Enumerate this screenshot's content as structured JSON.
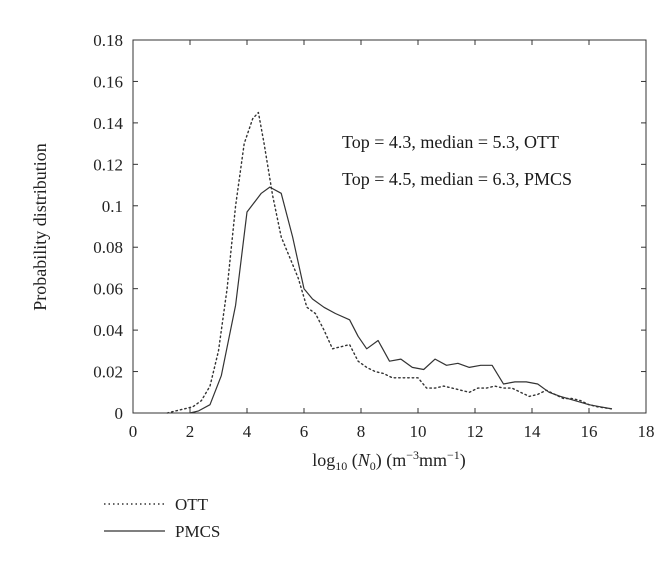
{
  "chart_data": {
    "type": "line",
    "xlabel": {
      "base": "log",
      "sub": "10",
      "open": " (",
      "var": "N",
      "var_sub": "0",
      "close": ") (m",
      "sup1": "−3",
      "mid": "mm",
      "sup2": "−1",
      "end": ")"
    },
    "ylabel": "Probability distribution",
    "xlim": [
      0,
      18
    ],
    "ylim": [
      0,
      0.18
    ],
    "xticks": [
      0,
      2,
      4,
      6,
      8,
      10,
      12,
      14,
      16,
      18
    ],
    "yticks": [
      0,
      0.02,
      0.04,
      0.06,
      0.08,
      0.1,
      0.12,
      0.14,
      0.16,
      0.18
    ],
    "ytick_labels": [
      "0",
      "0.02",
      "0.04",
      "0.06",
      "0.08",
      "0.1",
      "0.12",
      "0.14",
      "0.16",
      "0.18"
    ],
    "grid": false,
    "legend_position": "below-left",
    "annotations": [
      "Top = 4.3, median = 5.3, OTT",
      "Top = 4.5, median = 6.3, PMCS"
    ],
    "series": [
      {
        "name": "OTT",
        "style": "dotted",
        "color": "#333333",
        "x": [
          1.2,
          1.5,
          1.8,
          2.1,
          2.4,
          2.7,
          3.0,
          3.3,
          3.6,
          3.9,
          4.2,
          4.4,
          4.6,
          4.9,
          5.2,
          5.5,
          5.8,
          6.1,
          6.4,
          6.7,
          7.0,
          7.3,
          7.6,
          7.9,
          8.2,
          8.5,
          8.8,
          9.1,
          9.4,
          9.7,
          10.0,
          10.3,
          10.6,
          10.9,
          11.2,
          11.5,
          11.8,
          12.1,
          12.4,
          12.7,
          13.0,
          13.3,
          13.6,
          13.9,
          14.2,
          14.5,
          14.8,
          15.1,
          15.4,
          15.7,
          16.0,
          16.3,
          16.8
        ],
        "y": [
          0.0,
          0.001,
          0.002,
          0.003,
          0.006,
          0.013,
          0.03,
          0.06,
          0.1,
          0.13,
          0.142,
          0.145,
          0.13,
          0.105,
          0.085,
          0.075,
          0.065,
          0.051,
          0.048,
          0.04,
          0.031,
          0.032,
          0.033,
          0.025,
          0.022,
          0.02,
          0.019,
          0.017,
          0.017,
          0.017,
          0.017,
          0.012,
          0.012,
          0.013,
          0.012,
          0.011,
          0.01,
          0.012,
          0.012,
          0.013,
          0.012,
          0.012,
          0.01,
          0.008,
          0.009,
          0.011,
          0.009,
          0.007,
          0.007,
          0.006,
          0.004,
          0.003,
          0.002
        ]
      },
      {
        "name": "PMCS",
        "style": "solid",
        "color": "#333333",
        "x": [
          2.0,
          2.3,
          2.7,
          3.1,
          3.6,
          4.0,
          4.5,
          4.8,
          5.2,
          5.6,
          6.0,
          6.3,
          6.7,
          7.1,
          7.6,
          7.9,
          8.2,
          8.6,
          9.0,
          9.4,
          9.8,
          10.2,
          10.6,
          11.0,
          11.4,
          11.8,
          12.2,
          12.6,
          13.0,
          13.4,
          13.8,
          14.2,
          14.6,
          15.0,
          15.5,
          16.0,
          16.4,
          16.8
        ],
        "y": [
          0.0,
          0.001,
          0.004,
          0.018,
          0.052,
          0.097,
          0.106,
          0.109,
          0.106,
          0.085,
          0.06,
          0.055,
          0.051,
          0.048,
          0.045,
          0.037,
          0.031,
          0.035,
          0.025,
          0.026,
          0.022,
          0.021,
          0.026,
          0.023,
          0.024,
          0.022,
          0.023,
          0.023,
          0.014,
          0.015,
          0.015,
          0.014,
          0.01,
          0.008,
          0.006,
          0.004,
          0.003,
          0.002
        ]
      }
    ]
  }
}
